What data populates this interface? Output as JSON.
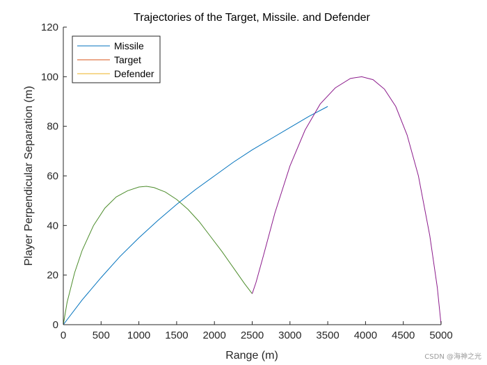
{
  "chart_data": {
    "type": "line",
    "title": "Trajectories of the Target, Missile. and Defender",
    "xlabel": "Range (m)",
    "ylabel": "Player Perpendicular Separation (m)",
    "xlim": [
      0,
      5000
    ],
    "ylim": [
      0,
      120
    ],
    "xticks": [
      0,
      500,
      1000,
      1500,
      2000,
      2500,
      3000,
      3500,
      4000,
      4500,
      5000
    ],
    "yticks": [
      0,
      20,
      40,
      60,
      80,
      100,
      120
    ],
    "grid": false,
    "legend_position": "top-left",
    "series": [
      {
        "name": "Missile",
        "color": "#0072BD",
        "x": [
          0,
          250,
          500,
          750,
          1000,
          1250,
          1500,
          1750,
          2000,
          2250,
          2500,
          2750,
          3000,
          3250,
          3500
        ],
        "y": [
          0,
          10,
          19,
          27.5,
          35,
          42,
          48.5,
          54.5,
          60,
          65.5,
          70.5,
          75,
          79.5,
          84,
          88
        ]
      },
      {
        "name": "Target",
        "color": "#D95319",
        "x": [
          0,
          50,
          150,
          250,
          400,
          550,
          700,
          850,
          1000,
          1100,
          1200,
          1350,
          1500,
          1650,
          1800,
          1950,
          2100,
          2250,
          2400,
          2500,
          2550,
          2650,
          2800,
          3000,
          3200,
          3400,
          3600,
          3800,
          3950,
          4100,
          4250,
          4400,
          4550,
          4700,
          4850,
          4950,
          5000
        ],
        "y": [
          0,
          9,
          21,
          30,
          40,
          47,
          51.5,
          54,
          55.5,
          55.8,
          55.3,
          53.5,
          50.5,
          46.5,
          41.5,
          35.5,
          29.5,
          23,
          16.5,
          12.5,
          17,
          28,
          45,
          64,
          78.5,
          89,
          95.5,
          99.3,
          100,
          98.8,
          95,
          88,
          76.5,
          60,
          36,
          15,
          0
        ]
      },
      {
        "name": "Defender",
        "color": "#EDB120",
        "x": [],
        "y": []
      }
    ],
    "overlay_colors": {
      "segment_1": "#4C8C2B",
      "segment_2": "#8B1A8B"
    }
  },
  "watermark": "CSDN @海神之光"
}
